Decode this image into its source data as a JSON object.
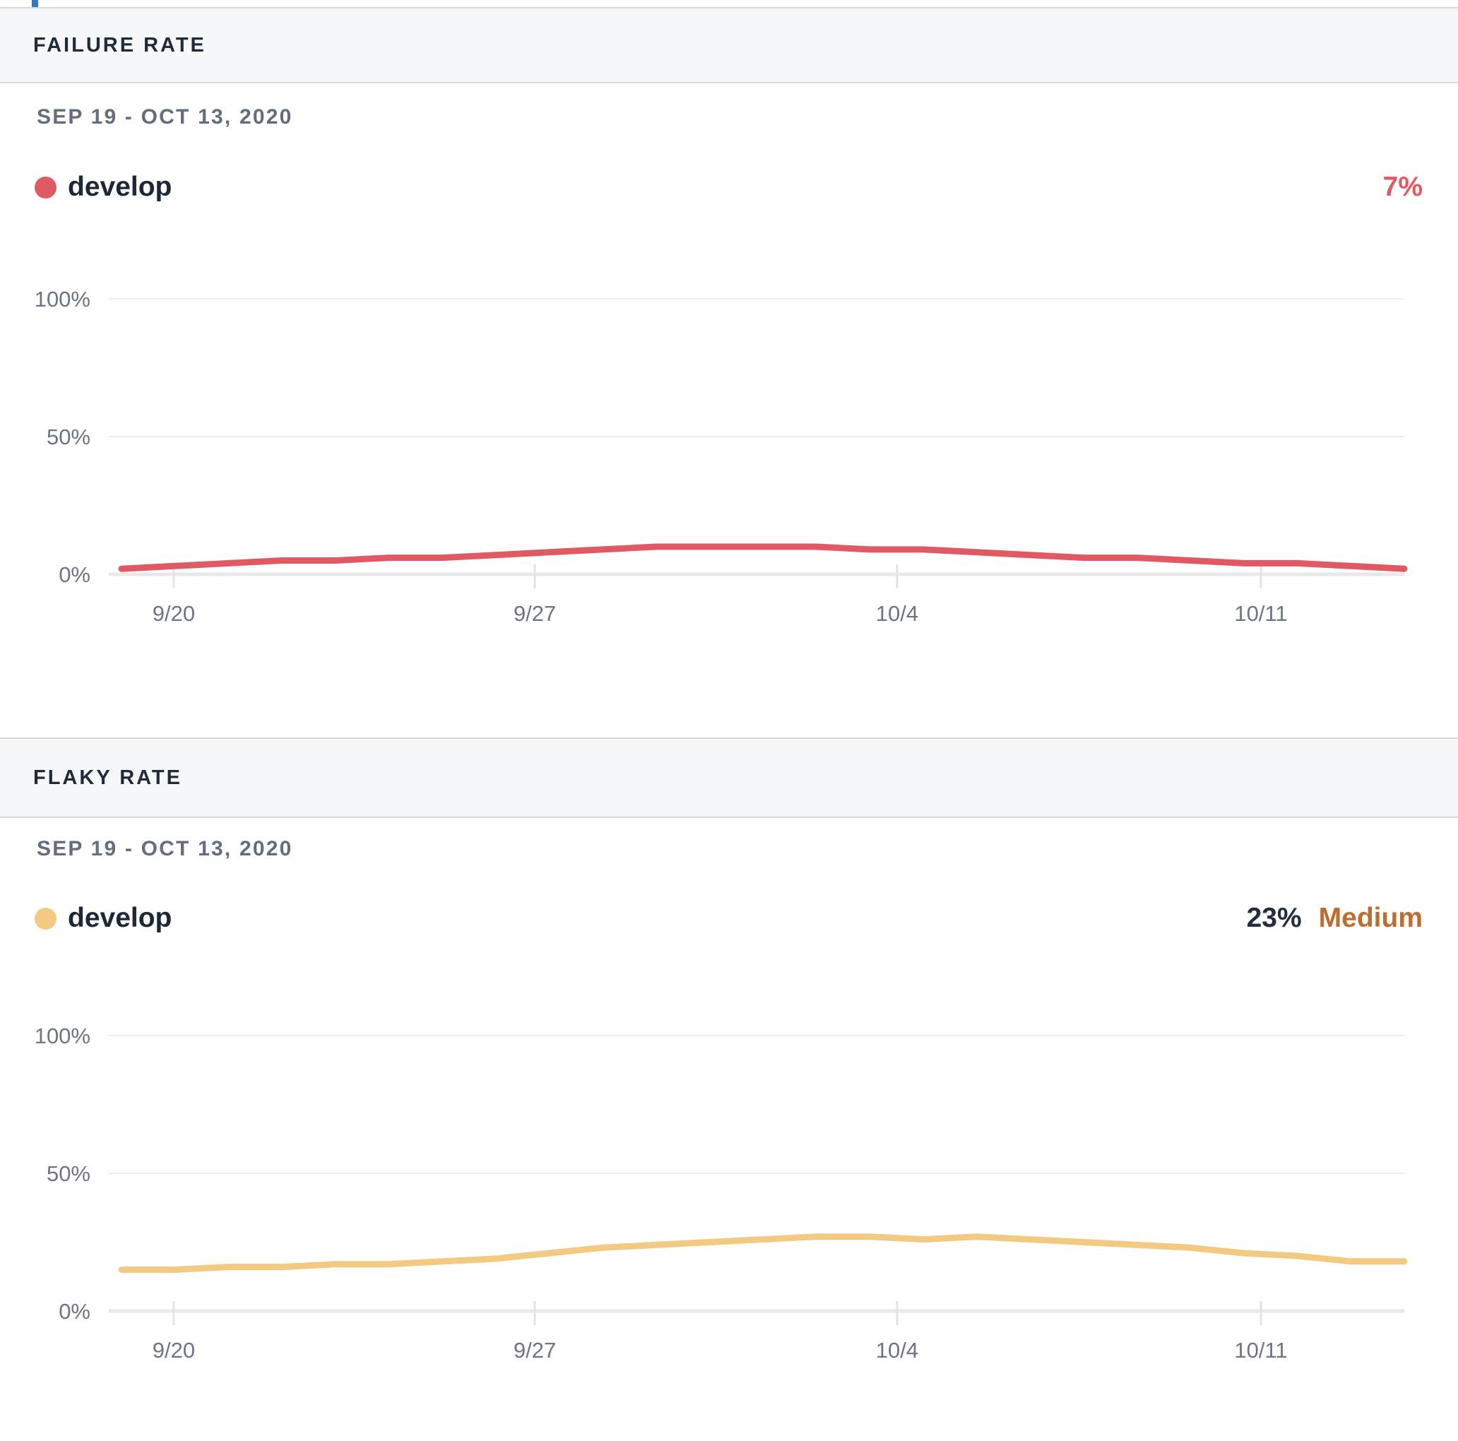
{
  "page": {
    "artifact_color": "#2e79c2"
  },
  "sections": [
    {
      "header": "FAILURE RATE",
      "date_range": "SEP 19 - OCT 13, 2020",
      "series_label": "develop",
      "value": "7%",
      "value_color": "#df5a63",
      "severity": "",
      "severity_color": "#bd6d2e",
      "dot_color": "#df5a63"
    },
    {
      "header": "FLAKY RATE",
      "date_range": "SEP 19 - OCT 13, 2020",
      "series_label": "develop",
      "value": "23%",
      "value_color": "#222e3e",
      "severity": "Medium",
      "severity_color": "#bd6d2e",
      "dot_color": "#f2ca81"
    }
  ],
  "chart_data": [
    {
      "type": "line",
      "title": "Failure rate",
      "subtitle": "SEP 19 - OCT 13, 2020",
      "legend": [
        {
          "label": "develop",
          "color": "#df5a63"
        }
      ],
      "legend_position": "top-left",
      "grid": "horizontal",
      "ylim": [
        0,
        100
      ],
      "y_ticks": [
        {
          "label": "0%",
          "pct": 0
        },
        {
          "label": "50%",
          "pct": 50
        },
        {
          "label": "100%",
          "pct": 100
        }
      ],
      "x_tick_labels": [
        "9/20",
        "9/27",
        "10/4",
        "10/11"
      ],
      "x_dates": [
        "9/19",
        "9/20",
        "9/21",
        "9/22",
        "9/23",
        "9/24",
        "9/25",
        "9/26",
        "9/27",
        "9/28",
        "9/29",
        "9/30",
        "10/1",
        "10/2",
        "10/3",
        "10/4",
        "10/5",
        "10/6",
        "10/7",
        "10/8",
        "10/9",
        "10/10",
        "10/11",
        "10/12",
        "10/13"
      ],
      "series": [
        {
          "name": "develop",
          "color": "#df5a63",
          "values": [
            2,
            3,
            4,
            5,
            5,
            6,
            6,
            7,
            8,
            9,
            10,
            10,
            10,
            10,
            9,
            9,
            8,
            7,
            6,
            6,
            5,
            4,
            4,
            3,
            2
          ]
        }
      ],
      "summary_value": "7%"
    },
    {
      "type": "line",
      "title": "Flaky rate",
      "subtitle": "SEP 19 - OCT 13, 2020",
      "legend": [
        {
          "label": "develop",
          "color": "#f2ca81"
        }
      ],
      "legend_position": "top-left",
      "grid": "horizontal",
      "ylim": [
        0,
        100
      ],
      "y_ticks": [
        {
          "label": "0%",
          "pct": 0
        },
        {
          "label": "50%",
          "pct": 50
        },
        {
          "label": "100%",
          "pct": 100
        }
      ],
      "x_tick_labels": [
        "9/20",
        "9/27",
        "10/4",
        "10/11"
      ],
      "x_dates": [
        "9/19",
        "9/20",
        "9/21",
        "9/22",
        "9/23",
        "9/24",
        "9/25",
        "9/26",
        "9/27",
        "9/28",
        "9/29",
        "9/30",
        "10/1",
        "10/2",
        "10/3",
        "10/4",
        "10/5",
        "10/6",
        "10/7",
        "10/8",
        "10/9",
        "10/10",
        "10/11",
        "10/12",
        "10/13"
      ],
      "series": [
        {
          "name": "develop",
          "color": "#f2ca81",
          "values": [
            15,
            15,
            16,
            16,
            17,
            17,
            18,
            19,
            21,
            23,
            24,
            25,
            26,
            27,
            27,
            26,
            27,
            26,
            25,
            24,
            23,
            21,
            20,
            18,
            18
          ]
        }
      ],
      "summary_value": "23%",
      "summary_severity": "Medium"
    }
  ]
}
